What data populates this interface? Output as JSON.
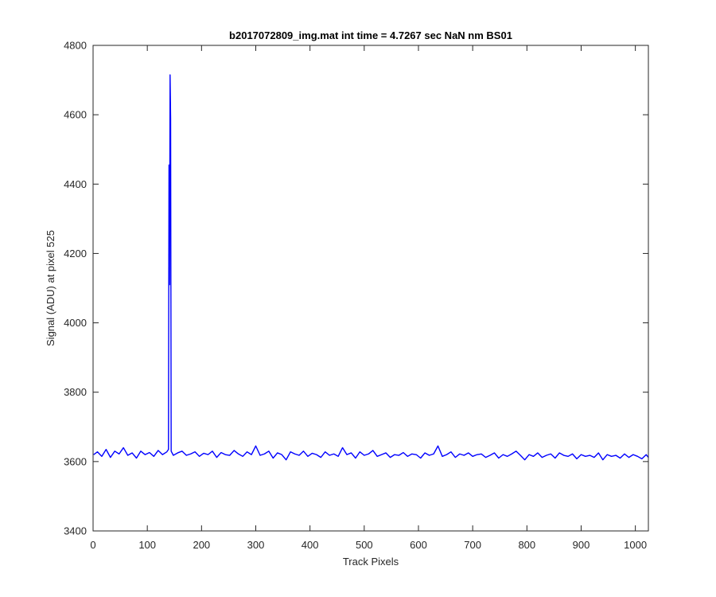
{
  "chart_data": {
    "type": "line",
    "title": "b2017072809_img.mat int time = 4.7267 sec  NaN nm BS01",
    "x_label": "Track Pixels",
    "y_label": "Signal (ADU) at pixel 525",
    "xlim": [
      0,
      1024
    ],
    "ylim": [
      3400,
      4800
    ],
    "xticks": [
      0,
      100,
      200,
      300,
      400,
      500,
      600,
      700,
      800,
      900,
      1000
    ],
    "yticks": [
      3400,
      3600,
      3800,
      4000,
      4200,
      4400,
      4600,
      4800
    ],
    "grid": false,
    "x": [
      1,
      8,
      16,
      24,
      32,
      40,
      48,
      56,
      64,
      72,
      80,
      88,
      96,
      104,
      112,
      120,
      128,
      136,
      139,
      140,
      141,
      142,
      143,
      144,
      148,
      156,
      164,
      172,
      180,
      188,
      196,
      204,
      212,
      220,
      228,
      236,
      244,
      252,
      260,
      268,
      276,
      284,
      292,
      300,
      308,
      316,
      324,
      332,
      340,
      348,
      356,
      364,
      372,
      380,
      388,
      396,
      404,
      412,
      420,
      428,
      436,
      444,
      452,
      460,
      468,
      476,
      484,
      492,
      500,
      508,
      516,
      524,
      532,
      540,
      548,
      556,
      564,
      572,
      580,
      588,
      596,
      604,
      612,
      620,
      628,
      636,
      644,
      652,
      660,
      668,
      676,
      684,
      692,
      700,
      708,
      716,
      724,
      732,
      740,
      748,
      756,
      764,
      772,
      780,
      788,
      796,
      804,
      812,
      820,
      828,
      836,
      844,
      852,
      860,
      868,
      876,
      884,
      892,
      900,
      908,
      916,
      924,
      932,
      940,
      948,
      956,
      964,
      972,
      980,
      988,
      996,
      1004,
      1012,
      1020,
      1024
    ],
    "series": [
      {
        "color": "#0000ff",
        "values": [
          3620,
          3628,
          3615,
          3635,
          3612,
          3630,
          3622,
          3640,
          3618,
          3625,
          3610,
          3630,
          3620,
          3626,
          3615,
          3632,
          3620,
          3628,
          3635,
          4455,
          4110,
          4715,
          4590,
          3630,
          3618,
          3625,
          3630,
          3618,
          3622,
          3628,
          3615,
          3624,
          3620,
          3630,
          3612,
          3626,
          3620,
          3618,
          3632,
          3622,
          3615,
          3628,
          3620,
          3645,
          3618,
          3622,
          3630,
          3610,
          3625,
          3620,
          3605,
          3628,
          3622,
          3618,
          3630,
          3615,
          3624,
          3620,
          3612,
          3628,
          3618,
          3622,
          3615,
          3640,
          3620,
          3625,
          3610,
          3628,
          3618,
          3622,
          3632,
          3615,
          3620,
          3625,
          3612,
          3620,
          3618,
          3626,
          3615,
          3622,
          3620,
          3610,
          3625,
          3618,
          3622,
          3645,
          3615,
          3620,
          3628,
          3612,
          3622,
          3618,
          3625,
          3615,
          3620,
          3622,
          3612,
          3618,
          3625,
          3610,
          3620,
          3615,
          3622,
          3630,
          3618,
          3605,
          3620,
          3615,
          3625,
          3612,
          3618,
          3622,
          3610,
          3625,
          3618,
          3615,
          3622,
          3608,
          3620,
          3615,
          3618,
          3612,
          3625,
          3605,
          3620,
          3615,
          3618,
          3610,
          3622,
          3612,
          3620,
          3615,
          3608,
          3620,
          3612
        ]
      }
    ]
  }
}
